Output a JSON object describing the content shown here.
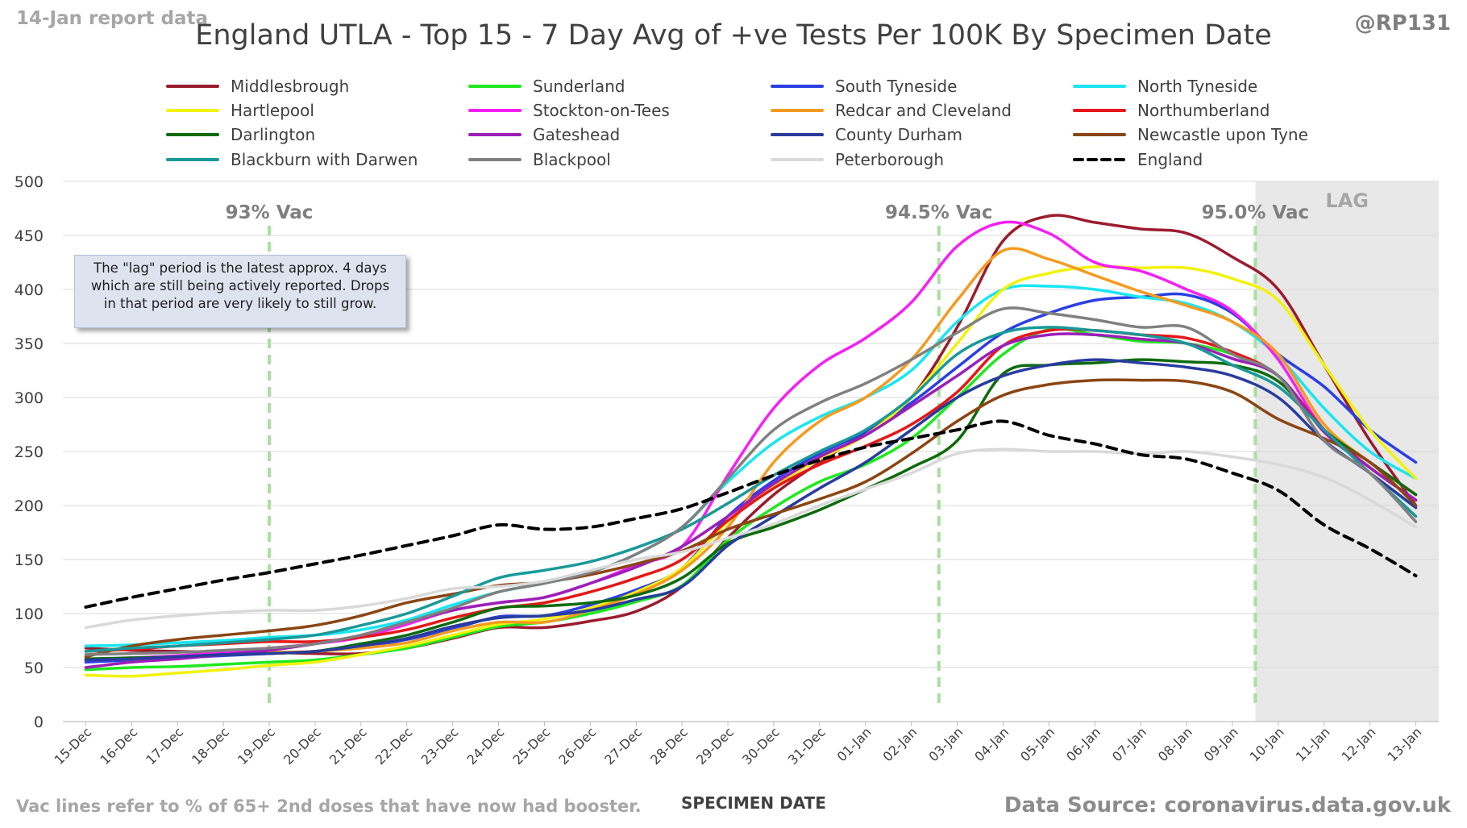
{
  "header": {
    "report_label": "14-Jan report data",
    "handle": "@RP131",
    "title": "England UTLA - Top 15 - 7 Day Avg of +ve Tests Per 100K By Specimen Date"
  },
  "footer": {
    "footnote": "Vac lines refer to % of 65+ 2nd doses that have now had booster.",
    "source": "Data Source: coronavirus.data.gov.uk"
  },
  "annotation_box": {
    "lines": [
      "The \"lag\" period is the latest approx. 4 days",
      "which are still being actively reported.  Drops",
      "in that period are very likely to still grow."
    ]
  },
  "chart_data": {
    "type": "line",
    "title": "England UTLA - Top 15 - 7 Day Avg of +ve Tests Per 100K By Specimen Date",
    "xlabel": "SPECIMEN DATE",
    "ylabel": "",
    "ylim": [
      0,
      500
    ],
    "yticks": [
      0,
      50,
      100,
      150,
      200,
      250,
      300,
      350,
      400,
      450,
      500
    ],
    "grid": true,
    "legend_position": "top",
    "categories": [
      "15-Dec",
      "16-Dec",
      "17-Dec",
      "18-Dec",
      "19-Dec",
      "20-Dec",
      "21-Dec",
      "22-Dec",
      "23-Dec",
      "24-Dec",
      "25-Dec",
      "26-Dec",
      "27-Dec",
      "28-Dec",
      "29-Dec",
      "30-Dec",
      "31-Dec",
      "01-Jan",
      "02-Jan",
      "03-Jan",
      "04-Jan",
      "05-Jan",
      "06-Jan",
      "07-Jan",
      "08-Jan",
      "09-Jan",
      "10-Jan",
      "11-Jan",
      "12-Jan",
      "13-Jan"
    ],
    "vac_markers": [
      {
        "label": "93% Vac",
        "after_index": 4.0
      },
      {
        "label": "94.5% Vac",
        "after_index": 18.6
      },
      {
        "label": "95.0% Vac",
        "after_index": 25.5
      }
    ],
    "lag": {
      "label": "LAG",
      "start_index": 26.0
    },
    "series": [
      {
        "name": "Middlesbrough",
        "color": "#9b1c2e",
        "dashed": false,
        "values": [
          68,
          66,
          65,
          64,
          64,
          63,
          63,
          68,
          77,
          87,
          87,
          93,
          102,
          125,
          170,
          210,
          240,
          268,
          300,
          365,
          445,
          468,
          462,
          456,
          452,
          430,
          400,
          330,
          260,
          200
        ]
      },
      {
        "name": "Sunderland",
        "color": "#1fe81f",
        "dashed": false,
        "values": [
          48,
          50,
          51,
          53,
          55,
          57,
          62,
          68,
          78,
          88,
          92,
          100,
          111,
          126,
          168,
          198,
          222,
          238,
          262,
          300,
          340,
          363,
          358,
          352,
          350,
          340,
          320,
          270,
          235,
          205
        ]
      },
      {
        "name": "South Tyneside",
        "color": "#2b3fe3",
        "dashed": false,
        "values": [
          55,
          57,
          59,
          61,
          63,
          65,
          69,
          76,
          86,
          97,
          98,
          108,
          122,
          142,
          190,
          223,
          248,
          268,
          295,
          328,
          360,
          378,
          390,
          393,
          395,
          378,
          340,
          310,
          270,
          240
        ]
      },
      {
        "name": "North Tyneside",
        "color": "#19e6f2",
        "dashed": false,
        "values": [
          70,
          71,
          73,
          75,
          78,
          80,
          85,
          94,
          108,
          120,
          128,
          138,
          155,
          180,
          222,
          258,
          282,
          300,
          325,
          370,
          400,
          403,
          400,
          393,
          387,
          370,
          338,
          290,
          250,
          225
        ]
      },
      {
        "name": "Hartlepool",
        "color": "#f2f20c",
        "dashed": false,
        "values": [
          43,
          42,
          45,
          48,
          52,
          55,
          62,
          70,
          80,
          90,
          95,
          105,
          120,
          142,
          185,
          218,
          243,
          265,
          300,
          350,
          400,
          415,
          421,
          420,
          420,
          410,
          390,
          330,
          270,
          225
        ]
      },
      {
        "name": "Stockton-on-Tees",
        "color": "#f51ff5",
        "dashed": false,
        "values": [
          57,
          59,
          61,
          64,
          68,
          72,
          78,
          90,
          103,
          110,
          115,
          128,
          145,
          162,
          228,
          290,
          330,
          355,
          388,
          440,
          462,
          452,
          425,
          417,
          400,
          380,
          335,
          270,
          240,
          210
        ]
      },
      {
        "name": "Redcar and Cleveland",
        "color": "#f59a1f",
        "dashed": false,
        "values": [
          58,
          58,
          60,
          62,
          64,
          65,
          68,
          73,
          84,
          92,
          92,
          103,
          118,
          140,
          180,
          240,
          278,
          300,
          335,
          390,
          436,
          428,
          413,
          398,
          385,
          370,
          340,
          275,
          240,
          210
        ]
      },
      {
        "name": "Northumberland",
        "color": "#e61717",
        "dashed": false,
        "values": [
          65,
          67,
          70,
          72,
          74,
          74,
          78,
          85,
          96,
          105,
          110,
          120,
          133,
          150,
          186,
          216,
          238,
          255,
          275,
          305,
          348,
          362,
          362,
          358,
          355,
          342,
          320,
          270,
          235,
          205
        ]
      },
      {
        "name": "Darlington",
        "color": "#0d6b0d",
        "dashed": false,
        "values": [
          58,
          59,
          60,
          62,
          63,
          65,
          72,
          80,
          92,
          105,
          107,
          110,
          117,
          133,
          165,
          180,
          196,
          215,
          235,
          260,
          322,
          330,
          332,
          335,
          333,
          330,
          315,
          270,
          240,
          210
        ]
      },
      {
        "name": "Gateshead",
        "color": "#9b1fb8",
        "dashed": false,
        "values": [
          50,
          55,
          58,
          62,
          66,
          72,
          80,
          92,
          103,
          110,
          115,
          128,
          143,
          162,
          190,
          220,
          245,
          265,
          292,
          320,
          348,
          358,
          358,
          354,
          350,
          336,
          320,
          268,
          235,
          205
        ]
      },
      {
        "name": "County Durham",
        "color": "#283c9e",
        "dashed": false,
        "values": [
          57,
          58,
          60,
          62,
          63,
          65,
          70,
          77,
          88,
          96,
          98,
          103,
          113,
          125,
          163,
          190,
          216,
          240,
          270,
          300,
          320,
          330,
          335,
          332,
          328,
          320,
          300,
          260,
          230,
          198
        ]
      },
      {
        "name": "Newcastle upon Tyne",
        "color": "#8b4513",
        "dashed": false,
        "values": [
          60,
          70,
          76,
          80,
          84,
          89,
          98,
          110,
          118,
          126,
          129,
          136,
          146,
          158,
          178,
          192,
          206,
          222,
          248,
          278,
          302,
          312,
          316,
          316,
          315,
          305,
          280,
          262,
          240,
          200
        ]
      },
      {
        "name": "Blackburn with Darwen",
        "color": "#199999",
        "dashed": false,
        "values": [
          65,
          68,
          70,
          73,
          76,
          80,
          89,
          100,
          116,
          133,
          140,
          148,
          161,
          178,
          202,
          228,
          250,
          270,
          300,
          340,
          360,
          365,
          362,
          358,
          350,
          330,
          310,
          270,
          230,
          190
        ]
      },
      {
        "name": "Blackpool",
        "color": "#808080",
        "dashed": false,
        "values": [
          62,
          63,
          64,
          66,
          68,
          72,
          80,
          92,
          105,
          120,
          128,
          138,
          155,
          180,
          225,
          270,
          295,
          313,
          335,
          360,
          382,
          378,
          372,
          365,
          365,
          340,
          320,
          260,
          230,
          185
        ]
      },
      {
        "name": "Peterborough",
        "color": "#d9d9d9",
        "dashed": false,
        "values": [
          87,
          94,
          98,
          101,
          103,
          103,
          107,
          114,
          123,
          125,
          130,
          140,
          150,
          157,
          170,
          183,
          200,
          215,
          230,
          248,
          252,
          250,
          250,
          248,
          250,
          245,
          238,
          226,
          205,
          180
        ]
      },
      {
        "name": "England",
        "color": "#000000",
        "dashed": true,
        "values": [
          106,
          115,
          123,
          131,
          138,
          146,
          154,
          163,
          172,
          182,
          178,
          180,
          188,
          197,
          212,
          228,
          242,
          254,
          262,
          270,
          278,
          265,
          257,
          247,
          243,
          230,
          214,
          182,
          160,
          135
        ]
      }
    ]
  }
}
